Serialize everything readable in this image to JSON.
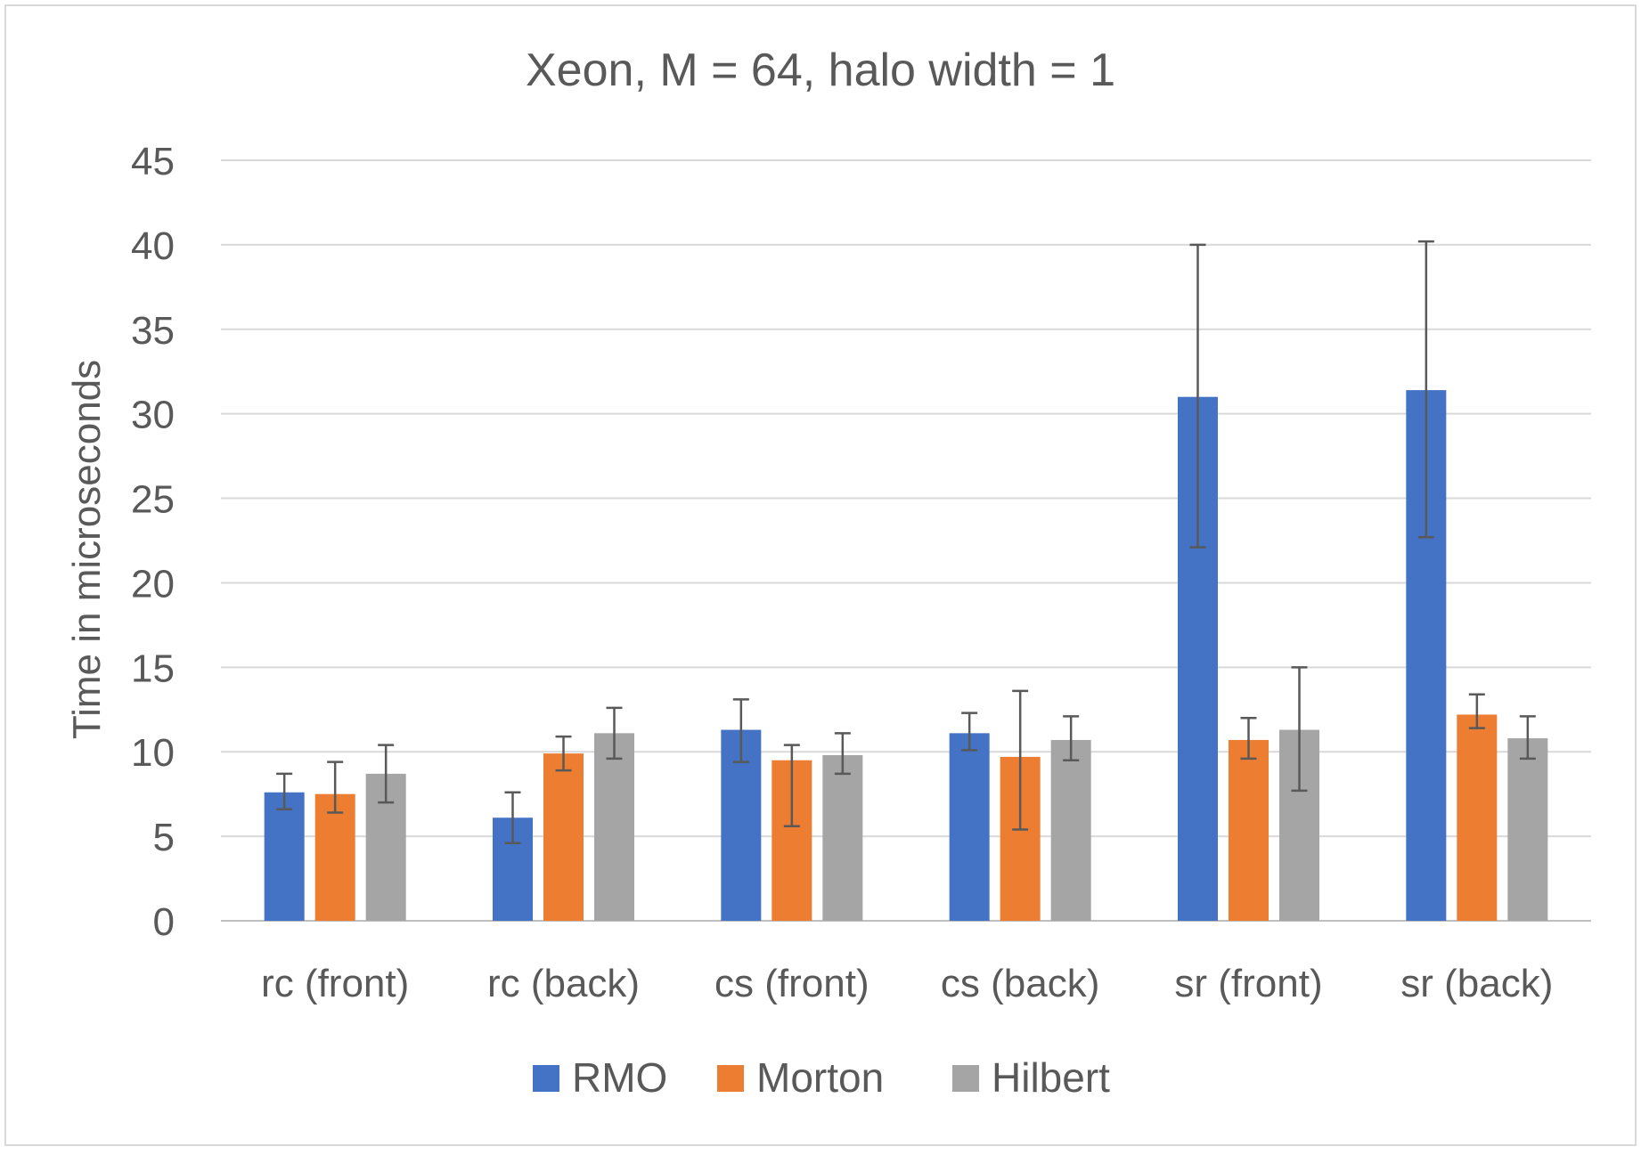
{
  "chart_data": {
    "type": "bar",
    "title": "Xeon, M = 64, halo width = 1",
    "ylabel": "Time in microseconds",
    "xlabel": "",
    "ylim": [
      0,
      45
    ],
    "yticks": [
      0,
      5,
      10,
      15,
      20,
      25,
      30,
      35,
      40,
      45
    ],
    "grid": true,
    "legend_position": "bottom",
    "categories": [
      "rc (front)",
      "rc (back)",
      "cs (front)",
      "cs (back)",
      "sr (front)",
      "sr (back)"
    ],
    "series": [
      {
        "name": "RMO",
        "color": "#4472C4",
        "values": [
          7.6,
          6.1,
          11.3,
          11.1,
          31.0,
          31.4
        ],
        "error_low": [
          6.6,
          4.6,
          9.4,
          10.1,
          22.1,
          22.7
        ],
        "error_high": [
          8.7,
          7.6,
          13.1,
          12.3,
          40.0,
          40.2
        ]
      },
      {
        "name": "Morton",
        "color": "#ED7D31",
        "values": [
          7.5,
          9.9,
          9.5,
          9.7,
          10.7,
          12.2
        ],
        "error_low": [
          6.4,
          8.9,
          5.6,
          5.4,
          9.6,
          11.4
        ],
        "error_high": [
          9.4,
          10.9,
          10.4,
          13.6,
          12.0,
          13.4
        ]
      },
      {
        "name": "Hilbert",
        "color": "#A5A5A5",
        "values": [
          8.7,
          11.1,
          9.8,
          10.7,
          11.3,
          10.8
        ],
        "error_low": [
          7.0,
          9.6,
          8.7,
          9.5,
          7.7,
          9.6
        ],
        "error_high": [
          10.4,
          12.6,
          11.1,
          12.1,
          15.0,
          12.1
        ]
      }
    ]
  }
}
